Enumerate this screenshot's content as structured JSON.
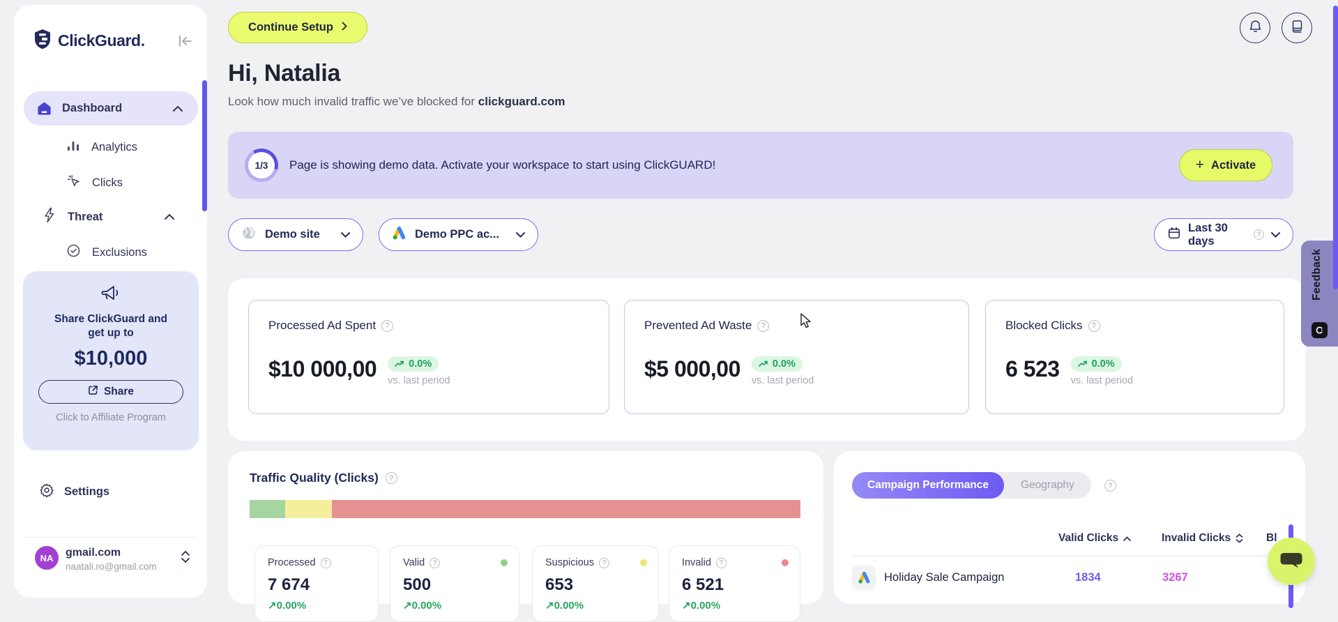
{
  "app": {
    "brand": "ClickGuard."
  },
  "sidebar": {
    "nav": [
      {
        "label": "Dashboard"
      },
      {
        "label": "Analytics"
      },
      {
        "label": "Clicks"
      },
      {
        "label": "Threat"
      },
      {
        "label": "Exclusions"
      }
    ],
    "promo": {
      "line1": "Share ClickGuard and",
      "line2": "get up to",
      "amount": "$10,000",
      "share_label": "Share",
      "affiliate_label": "Click to Affiliate Program"
    },
    "settings_label": "Settings",
    "account": {
      "initials": "NA",
      "name": "gmail.com",
      "email": "naatali.ro@gmail.com"
    }
  },
  "header": {
    "continue_setup_label": "Continue Setup",
    "greeting": "Hi, Natalia",
    "subtitle": "Look how much invalid traffic we’ve blocked for",
    "subtitle_domain": "clickguard.com"
  },
  "banner": {
    "progress": "1/3",
    "message": "Page is showing demo data. Activate your workspace to start using ClickGUARD!",
    "activate_label": "Activate"
  },
  "filters": {
    "site": "Demo site",
    "ppc_account": "Demo PPC ac...",
    "date_range": "Last 30 days"
  },
  "stats": [
    {
      "title": "Processed Ad Spent",
      "value": "$10 000,00",
      "delta": "0.0%",
      "compare": "vs. last period"
    },
    {
      "title": "Prevented Ad Waste",
      "value": "$5 000,00",
      "delta": "0.0%",
      "compare": "vs. last period"
    },
    {
      "title": "Blocked Clicks",
      "value": "6 523",
      "delta": "0.0%",
      "compare": "vs. last period"
    }
  ],
  "traffic": {
    "title": "Traffic Quality (Clicks)",
    "segments": [
      {
        "name": "valid",
        "width": "6.4%",
        "color": "#a5d6a1"
      },
      {
        "name": "suspicious",
        "width": "8.6%",
        "color": "#f5ef9d"
      },
      {
        "name": "invalid",
        "width": "85%",
        "color": "#e69191"
      }
    ],
    "cards": [
      {
        "label": "Processed",
        "value": "7 674",
        "delta": "0.00%"
      },
      {
        "label": "Valid",
        "value": "500",
        "delta": "0.00%",
        "dot_color": "#93ce8c"
      },
      {
        "label": "Suspicious",
        "value": "653",
        "delta": "0.00%",
        "dot_color": "#efe67a"
      },
      {
        "label": "Invalid",
        "value": "6 521",
        "delta": "0.00%",
        "dot_color": "#e98989"
      }
    ]
  },
  "campaign": {
    "tabs": [
      {
        "label": "Campaign Performance"
      },
      {
        "label": "Geography"
      }
    ],
    "columns": [
      {
        "label": "Valid Clicks"
      },
      {
        "label": "Invalid Clicks"
      },
      {
        "label": "Bl"
      }
    ],
    "rows": [
      {
        "name": "Holiday Sale Campaign",
        "valid_clicks": "1834",
        "invalid_clicks": "3267"
      }
    ]
  },
  "feedback": {
    "label": "Feedback"
  },
  "colors": {
    "accent_purple": "#6c5bf7",
    "lime_button": "#e9fa6d",
    "banner_lavender": "#d8d5f6",
    "delta_green": "#1ea15f",
    "valid_number": "#6e5ef2",
    "invalid_number": "#cf52e0",
    "avatar_purple": "#a43fd3"
  }
}
